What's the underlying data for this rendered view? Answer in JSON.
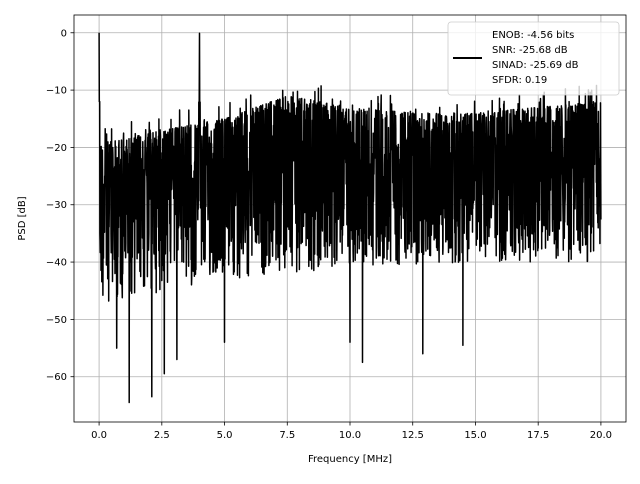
{
  "chart_data": {
    "type": "line",
    "title": "",
    "xlabel": "Frequency [MHz]",
    "ylabel": "PSD [dB]",
    "xlim": [
      -1.0,
      21.0
    ],
    "ylim": [
      -67.9,
      3.1
    ],
    "xticks": [
      0.0,
      2.5,
      5.0,
      7.5,
      10.0,
      12.5,
      15.0,
      17.5,
      20.0
    ],
    "xtick_labels": [
      "0.0",
      "2.5",
      "5.0",
      "7.5",
      "10.0",
      "12.5",
      "15.0",
      "17.5",
      "20.0"
    ],
    "yticks": [
      0,
      -10,
      -20,
      -30,
      -40,
      -50,
      -60
    ],
    "ytick_labels": [
      "0",
      "−10",
      "−20",
      "−30",
      "−40",
      "−50",
      "−60"
    ],
    "grid": true,
    "series": [
      {
        "color": "#000000",
        "x_range": [
          0.0,
          20.0
        ],
        "peaks": [
          {
            "x": 0.0,
            "y": 0.0
          },
          {
            "x": 4.0,
            "y": -0.1
          }
        ],
        "upper_envelope": [
          [
            0.5,
            -16
          ],
          [
            2.5,
            -14
          ],
          [
            5.0,
            -12
          ],
          [
            7.5,
            -8
          ],
          [
            10.0,
            -10
          ],
          [
            12.5,
            -11
          ],
          [
            15.0,
            -11
          ],
          [
            17.5,
            -10
          ],
          [
            20.0,
            -9
          ]
        ],
        "typical_lower": [
          [
            0.5,
            -47
          ],
          [
            5.0,
            -43
          ],
          [
            10.0,
            -41
          ],
          [
            15.0,
            -40
          ],
          [
            20.0,
            -40
          ]
        ],
        "deep_notches": [
          {
            "x": 1.2,
            "y": -64.5
          },
          {
            "x": 2.1,
            "y": -63.5
          },
          {
            "x": 2.6,
            "y": -59.5
          },
          {
            "x": 3.1,
            "y": -57
          },
          {
            "x": 0.7,
            "y": -55
          },
          {
            "x": 5.0,
            "y": -54
          },
          {
            "x": 10.0,
            "y": -54
          },
          {
            "x": 10.5,
            "y": -57.5
          },
          {
            "x": 12.9,
            "y": -56
          },
          {
            "x": 14.5,
            "y": -54.5
          }
        ]
      }
    ],
    "legend": {
      "position": "upper-right",
      "entries": [
        "ENOB: -4.56 bits\nSNR: -25.68 dB\nSINAD: -25.69 dB\nSFDR: 0.19"
      ],
      "lines": [
        "ENOB: -4.56 bits",
        "SNR: -25.68 dB",
        "SINAD: -25.69 dB",
        "SFDR: 0.19"
      ]
    }
  }
}
